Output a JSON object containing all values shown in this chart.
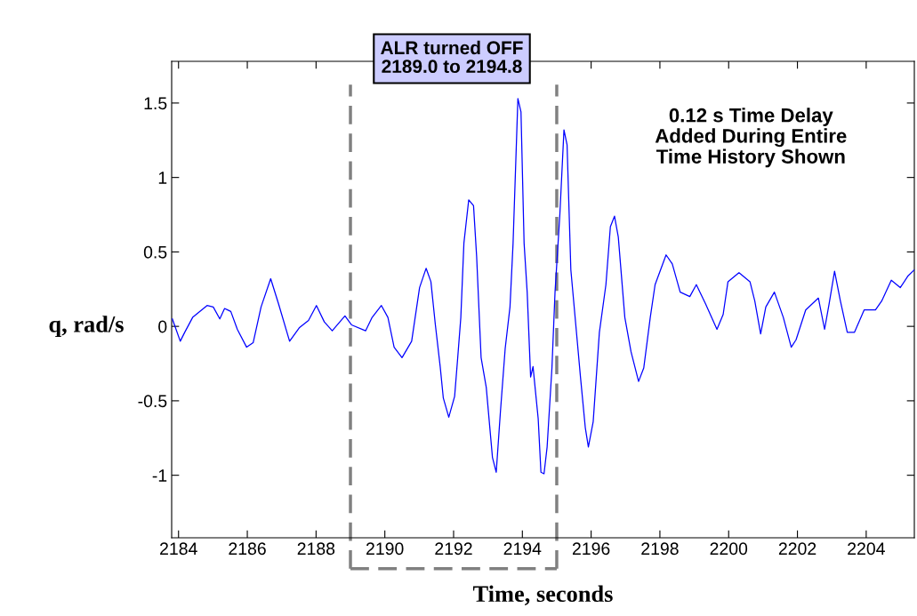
{
  "chart_data": {
    "type": "line",
    "xlabel": "Time, seconds",
    "ylabel": "q, rad/s",
    "annotations": [
      "ALR turned OFF\n2189.0 to 2194.8",
      "0.12 s Time Delay\nAdded During Entire\nTime History Shown"
    ],
    "xlim": [
      2183.8,
      2205.4
    ],
    "ylim": [
      -1.42,
      1.78
    ],
    "xticks": [
      2184,
      2186,
      2188,
      2190,
      2192,
      2194,
      2196,
      2198,
      2200,
      2202,
      2204
    ],
    "yticks": [
      -1,
      -0.5,
      0,
      0.5,
      1,
      1.5
    ],
    "ref_lines": [
      {
        "axis": "x",
        "value": 2189.0,
        "color": "#808080",
        "line_style": "dashed"
      },
      {
        "axis": "x",
        "value": 2195.0,
        "color": "#808080",
        "line_style": "dashed"
      }
    ],
    "grid": false,
    "legend": false,
    "marker": "none",
    "line_style": "solid",
    "series": [
      {
        "color": "#0000ff",
        "x": [
          2183.82,
          2184.05,
          2184.18,
          2184.41,
          2184.83,
          2185.01,
          2185.2,
          2185.34,
          2185.52,
          2185.71,
          2185.98,
          2186.17,
          2186.4,
          2186.68,
          2186.91,
          2187.23,
          2187.51,
          2187.78,
          2188.01,
          2188.24,
          2188.47,
          2188.84,
          2189.03,
          2189.44,
          2189.63,
          2189.9,
          2190.09,
          2190.27,
          2190.5,
          2190.78,
          2191.01,
          2191.2,
          2191.34,
          2191.47,
          2191.61,
          2191.7,
          2191.86,
          2192.03,
          2192.12,
          2192.21,
          2192.3,
          2192.44,
          2192.58,
          2192.67,
          2192.8,
          2192.95,
          2193.13,
          2193.24,
          2193.36,
          2193.5,
          2193.64,
          2193.73,
          2193.87,
          2193.96,
          2194.05,
          2194.14,
          2194.24,
          2194.31,
          2194.46,
          2194.54,
          2194.63,
          2194.72,
          2194.86,
          2194.95,
          2195.09,
          2195.21,
          2195.3,
          2195.41,
          2195.55,
          2195.69,
          2195.83,
          2195.92,
          2196.06,
          2196.24,
          2196.43,
          2196.56,
          2196.68,
          2196.79,
          2196.98,
          2197.16,
          2197.38,
          2197.53,
          2197.72,
          2197.86,
          2198.18,
          2198.36,
          2198.59,
          2198.87,
          2199.06,
          2199.33,
          2199.66,
          2199.84,
          2199.98,
          2200.3,
          2200.62,
          2200.76,
          2200.93,
          2201.08,
          2201.33,
          2201.59,
          2201.82,
          2201.96,
          2202.24,
          2202.61,
          2202.79,
          2202.92,
          2203.08,
          2203.25,
          2203.45,
          2203.66,
          2203.94,
          2204.27,
          2204.45,
          2204.73,
          2204.99,
          2205.22,
          2205.4
        ],
        "values": [
          0.05,
          -0.1,
          -0.04,
          0.06,
          0.14,
          0.13,
          0.05,
          0.12,
          0.1,
          -0.02,
          -0.14,
          -0.11,
          0.13,
          0.32,
          0.15,
          -0.1,
          -0.01,
          0.04,
          0.14,
          0.03,
          -0.03,
          0.07,
          0.01,
          -0.03,
          0.06,
          0.14,
          0.06,
          -0.14,
          -0.21,
          -0.1,
          0.26,
          0.39,
          0.3,
          0.01,
          -0.27,
          -0.48,
          -0.61,
          -0.47,
          -0.21,
          0.06,
          0.56,
          0.85,
          0.81,
          0.47,
          -0.21,
          -0.41,
          -0.88,
          -0.98,
          -0.58,
          -0.15,
          0.13,
          0.56,
          1.53,
          1.44,
          0.56,
          0.23,
          -0.34,
          -0.27,
          -0.62,
          -0.98,
          -0.99,
          -0.81,
          -0.28,
          0.23,
          0.75,
          1.32,
          1.22,
          0.38,
          0.02,
          -0.34,
          -0.68,
          -0.81,
          -0.64,
          -0.04,
          0.28,
          0.67,
          0.74,
          0.6,
          0.06,
          -0.17,
          -0.37,
          -0.28,
          0.06,
          0.28,
          0.48,
          0.42,
          0.23,
          0.2,
          0.28,
          0.15,
          -0.02,
          0.08,
          0.3,
          0.36,
          0.3,
          0.17,
          -0.05,
          0.13,
          0.23,
          0.06,
          -0.14,
          -0.09,
          0.11,
          0.19,
          -0.02,
          0.15,
          0.37,
          0.17,
          -0.04,
          -0.04,
          0.11,
          0.11,
          0.17,
          0.31,
          0.26,
          0.34,
          0.38
        ]
      }
    ]
  }
}
